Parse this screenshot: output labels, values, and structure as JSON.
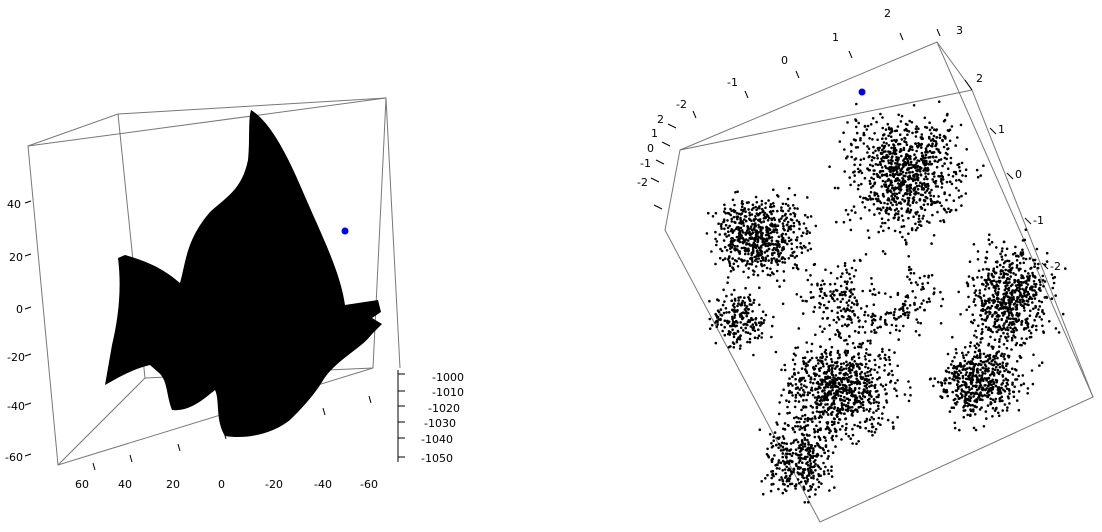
{
  "chart_data": [
    {
      "type": "scatter",
      "dimensions": 3,
      "title": "",
      "xlabel": "",
      "ylabel": "",
      "zlabel": "",
      "x_ticks": [
        "60",
        "40",
        "20",
        "0",
        "-20",
        "-40",
        "-60"
      ],
      "y_ticks": [
        "-1000",
        "-1010",
        "-1020",
        "-1030",
        "-1040",
        "-1050"
      ],
      "z_ticks": [
        "40",
        "20",
        "0",
        "-20",
        "-40",
        "-60"
      ],
      "point_color": "#000000",
      "highlight_color": "#0000ff",
      "highlight_count": 1,
      "shape": "angelfish-silhouette",
      "grid": false
    },
    {
      "type": "scatter",
      "dimensions": 3,
      "title": "",
      "xlabel": "",
      "ylabel": "",
      "zlabel": "",
      "top_ticks": [
        "-2",
        "-1",
        "0",
        "1",
        "2",
        "3"
      ],
      "right_ticks": [
        "2",
        "1",
        "0",
        "-1",
        "-2"
      ],
      "left_ticks": [
        "2",
        "1",
        "0",
        "-1",
        "-2"
      ],
      "point_color": "#000000",
      "highlight_color": "#0000ff",
      "highlight_count": 1,
      "shape": "flattened-point-cloud-with-holes",
      "grid": false
    }
  ]
}
